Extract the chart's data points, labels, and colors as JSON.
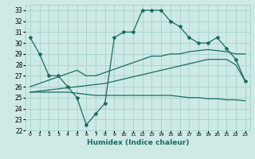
{
  "xlabel": "Humidex (Indice chaleur)",
  "hours": [
    0,
    1,
    2,
    3,
    4,
    5,
    6,
    7,
    8,
    9,
    10,
    11,
    12,
    13,
    14,
    15,
    16,
    17,
    18,
    19,
    20,
    21,
    22,
    23
  ],
  "line_spiky": [
    30.5,
    29.0,
    27.0,
    27.0,
    26.0,
    25.0,
    22.5,
    23.5,
    24.5,
    30.5,
    31.0,
    31.0,
    33.0,
    33.0,
    33.0,
    32.0,
    31.5,
    30.5,
    30.0,
    30.0,
    30.5,
    29.5,
    28.5,
    26.5
  ],
  "line_upper_diag": [
    26.0,
    26.3,
    26.6,
    26.9,
    27.2,
    27.5,
    27.0,
    27.0,
    27.3,
    27.6,
    27.9,
    28.2,
    28.5,
    28.8,
    28.8,
    29.0,
    29.0,
    29.2,
    29.3,
    29.4,
    29.3,
    29.2,
    29.0,
    29.0
  ],
  "line_mid_diag": [
    25.5,
    25.6,
    25.7,
    25.8,
    25.9,
    26.0,
    26.1,
    26.2,
    26.3,
    26.5,
    26.7,
    26.9,
    27.1,
    27.3,
    27.5,
    27.7,
    27.9,
    28.1,
    28.3,
    28.5,
    28.5,
    28.5,
    28.0,
    26.5
  ],
  "line_lower": [
    25.5,
    25.5,
    25.5,
    25.5,
    25.5,
    25.4,
    25.3,
    25.2,
    25.2,
    25.2,
    25.2,
    25.2,
    25.2,
    25.2,
    25.2,
    25.2,
    25.1,
    25.0,
    25.0,
    24.9,
    24.9,
    24.8,
    24.8,
    24.7
  ],
  "bg_color": "#ceeae6",
  "grid_color": "#aad4ce",
  "line_color": "#1a6b60",
  "ylim": [
    22,
    33.5
  ],
  "yticks": [
    22,
    23,
    24,
    25,
    26,
    27,
    28,
    29,
    30,
    31,
    32,
    33
  ],
  "marker": "*",
  "markersize": 3,
  "linewidth": 0.9
}
